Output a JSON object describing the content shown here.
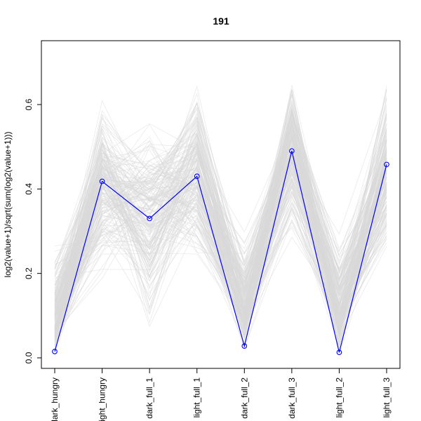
{
  "chart_data": {
    "type": "line",
    "title": "191",
    "xlabel": "",
    "ylabel": "log2(value+1)/sqrt(sum(log2(value+1)))",
    "categories": [
      "dark_hungry",
      "light_hungry",
      "dark_full_1",
      "light_full_1",
      "dark_full_2",
      "dark_full_3",
      "light_full_2",
      "light_full_3"
    ],
    "ylim": [
      0.0,
      0.7
    ],
    "yticks": [
      0.0,
      0.2,
      0.4,
      0.6
    ],
    "ytick_labels": [
      "0.0",
      "0.2",
      "0.4",
      "0.6"
    ],
    "grid": false,
    "highlight_series": {
      "values": [
        0.015,
        0.418,
        0.33,
        0.43,
        0.028,
        0.49,
        0.013,
        0.458
      ],
      "color": "#0000ff",
      "marker": "open-circle"
    },
    "background_series": {
      "color": "#d9d9d9",
      "count": 200,
      "ranges": [
        [
          0.0,
          0.31
        ],
        [
          0.12,
          0.66
        ],
        [
          0.0,
          0.61
        ],
        [
          0.18,
          0.69
        ],
        [
          0.0,
          0.32
        ],
        [
          0.22,
          0.72
        ],
        [
          0.0,
          0.31
        ],
        [
          0.17,
          0.68
        ]
      ],
      "typical": [
        0.08,
        0.43,
        0.33,
        0.44,
        0.12,
        0.52,
        0.1,
        0.45
      ],
      "note": "many grey background profile lines"
    }
  }
}
